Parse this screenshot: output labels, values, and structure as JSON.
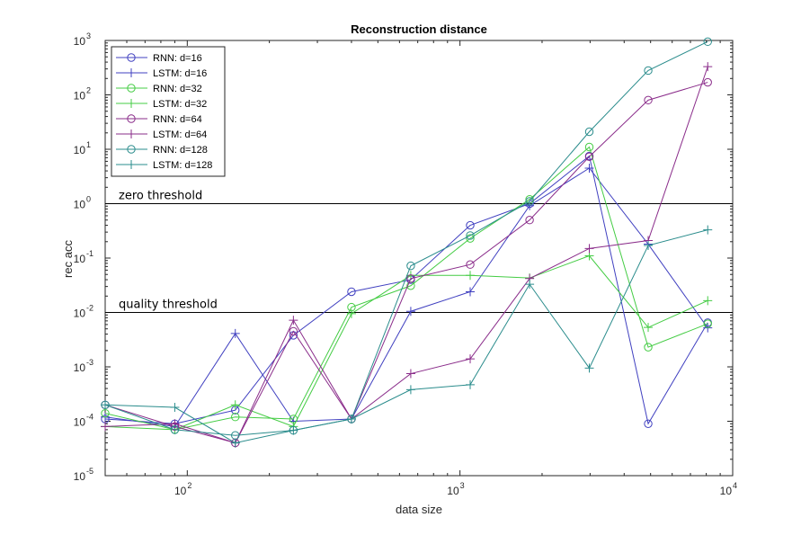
{
  "chart_data": {
    "type": "line",
    "title": "Reconstruction distance",
    "xlabel": "data size",
    "ylabel": "rec acc",
    "xscale": "log",
    "yscale": "log",
    "xlim": [
      50,
      10000
    ],
    "ylim": [
      1e-05,
      1000
    ],
    "x_ticks": [
      {
        "base": "10",
        "exp": "2",
        "value": 100
      },
      {
        "base": "10",
        "exp": "3",
        "value": 1000
      },
      {
        "base": "10",
        "exp": "4",
        "value": 10000
      }
    ],
    "y_ticks": [
      {
        "base": "10",
        "exp": "-5",
        "value": 1e-05
      },
      {
        "base": "10",
        "exp": "-4",
        "value": 0.0001
      },
      {
        "base": "10",
        "exp": "-3",
        "value": 0.001
      },
      {
        "base": "10",
        "exp": "-2",
        "value": 0.01
      },
      {
        "base": "10",
        "exp": "-1",
        "value": 0.1
      },
      {
        "base": "10",
        "exp": "0",
        "value": 1
      },
      {
        "base": "10",
        "exp": "1",
        "value": 10
      },
      {
        "base": "10",
        "exp": "2",
        "value": 100
      },
      {
        "base": "10",
        "exp": "3",
        "value": 1000
      }
    ],
    "legend_position": "top-left",
    "x": [
      50,
      90,
      150,
      245,
      400,
      660,
      1090,
      1800,
      2980,
      4900,
      8100
    ],
    "series": [
      {
        "name": "RNN: d=16",
        "color": "#4040c0",
        "marker": "circle",
        "values": [
          0.00011,
          9e-05,
          0.00016,
          0.0038,
          0.024,
          0.04,
          0.4,
          1.0,
          7.5,
          9e-05,
          0.0065
        ]
      },
      {
        "name": "LSTM: d=16",
        "color": "#4040c0",
        "marker": "plus",
        "values": [
          0.00012,
          8e-05,
          0.0041,
          0.0001,
          0.00011,
          0.0105,
          0.024,
          0.92,
          4.5,
          0.18,
          0.0052
        ]
      },
      {
        "name": "RNN: d=32",
        "color": "#44cc44",
        "marker": "circle",
        "values": [
          0.00014,
          7e-05,
          0.00012,
          0.00011,
          0.0125,
          0.031,
          0.23,
          1.2,
          11,
          0.0023,
          0.0062
        ]
      },
      {
        "name": "LSTM: d=32",
        "color": "#44cc44",
        "marker": "plus",
        "values": [
          8e-05,
          7e-05,
          0.0002,
          8e-05,
          0.0095,
          0.048,
          0.048,
          0.043,
          0.11,
          0.0053,
          0.0165
        ]
      },
      {
        "name": "RNN: d=64",
        "color": "#8a2c8a",
        "marker": "circle",
        "values": [
          0.0002,
          8e-05,
          4e-05,
          0.0045,
          0.00011,
          0.042,
          0.076,
          0.5,
          7.3,
          80,
          170
        ]
      },
      {
        "name": "LSTM: d=64",
        "color": "#8a2c8a",
        "marker": "plus",
        "values": [
          8e-05,
          9e-05,
          4e-05,
          0.0072,
          0.00011,
          0.00075,
          0.0014,
          0.042,
          0.15,
          0.21,
          330
        ]
      },
      {
        "name": "RNN: d=128",
        "color": "#2a8c8c",
        "marker": "circle",
        "values": [
          0.0002,
          7e-05,
          5.5e-05,
          6.8e-05,
          0.00011,
          0.072,
          0.26,
          1.1,
          21,
          280,
          950
        ]
      },
      {
        "name": "LSTM: d=128",
        "color": "#2a8c8c",
        "marker": "plus",
        "values": [
          0.0002,
          0.00018,
          4e-05,
          6.8e-05,
          0.00011,
          0.00038,
          0.00047,
          0.033,
          0.00095,
          0.17,
          0.33
        ]
      }
    ],
    "hlines": [
      {
        "y": 1,
        "label": "zero threshold"
      },
      {
        "y": 0.01,
        "label": "quality threshold"
      }
    ],
    "grid": false
  }
}
